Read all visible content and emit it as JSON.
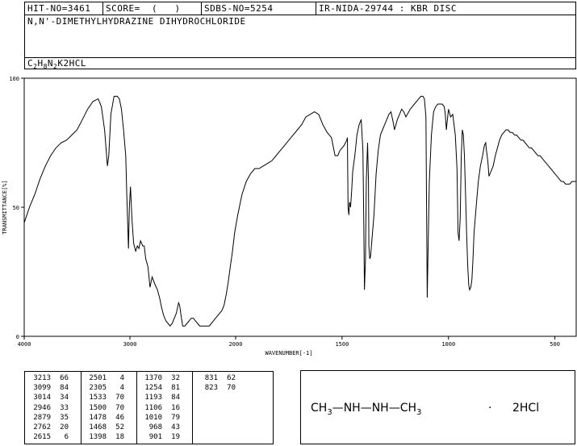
{
  "header": {
    "hit_no": "HIT-NO=3461",
    "score": "SCORE=  (   )",
    "sdbs_no": "SDBS-NO=5254",
    "ir_method": "IR-NIDA-29744 : KBR DISC",
    "compound_name": "N,N'-DIMETHYLHYDRAZINE DIHYDROCHLORIDE",
    "formula": {
      "c": "C",
      "c_n": "2",
      "h": "H",
      "h_n": "8",
      "n": "N",
      "n_n": "2",
      "suffix": "K2HCL"
    }
  },
  "structure": {
    "ch3_left": "CH",
    "sub3a": "3",
    "dash1": "—",
    "nh1": "NH",
    "dash2": "—",
    "nh2": "NH",
    "dash3": "—",
    "ch3_right": "CH",
    "sub3b": "3",
    "dot": "·",
    "salt": "2HCl"
  },
  "chart_data": {
    "type": "line",
    "xlabel": "WAVENUMBER[-1]",
    "ylabel": "TRANSMITTANCE[%]",
    "xlim": [
      4000,
      400
    ],
    "ylim": [
      0,
      100
    ],
    "xticks": [
      "4000",
      "3000",
      "2000",
      "1500",
      "1000",
      "500"
    ],
    "yticks": [
      "100",
      "50",
      "0"
    ],
    "series": [
      {
        "x": [
          4000,
          3950,
          3900,
          3850,
          3800,
          3750,
          3700,
          3650,
          3600,
          3550,
          3500,
          3450,
          3400,
          3350,
          3300,
          3270,
          3240,
          3213,
          3200,
          3180,
          3150,
          3120,
          3100,
          3080,
          3060,
          3040,
          3030,
          3014,
          3005,
          2995,
          2980,
          2965,
          2946,
          2930,
          2915,
          2900,
          2879,
          2865,
          2850,
          2830,
          2810,
          2790,
          2762,
          2740,
          2720,
          2700,
          2680,
          2660,
          2640,
          2620,
          2600,
          2580,
          2560,
          2550,
          2540,
          2530,
          2520,
          2501,
          2480,
          2460,
          2440,
          2420,
          2400,
          2380,
          2360,
          2340,
          2320,
          2305,
          2290,
          2270,
          2250,
          2230,
          2210,
          2190,
          2170,
          2150,
          2130,
          2110,
          2090,
          2070,
          2050,
          2030,
          2010,
          1990,
          1970,
          1950,
          1930,
          1910,
          1890,
          1870,
          1850,
          1830,
          1810,
          1790,
          1770,
          1750,
          1730,
          1710,
          1690,
          1670,
          1650,
          1630,
          1610,
          1600,
          1590,
          1570,
          1550,
          1533,
          1520,
          1510,
          1500,
          1490,
          1478,
          1475,
          1472,
          1468,
          1465,
          1460,
          1455,
          1450,
          1440,
          1430,
          1420,
          1410,
          1402,
          1398,
          1395,
          1390,
          1386,
          1380,
          1376,
          1374,
          1370,
          1366,
          1360,
          1350,
          1340,
          1330,
          1320,
          1310,
          1300,
          1290,
          1280,
          1270,
          1260,
          1254,
          1240,
          1230,
          1220,
          1210,
          1200,
          1193,
          1180,
          1170,
          1160,
          1150,
          1140,
          1130,
          1120,
          1113,
          1106,
          1100,
          1090,
          1080,
          1070,
          1060,
          1050,
          1040,
          1030,
          1020,
          1015,
          1010,
          1005,
          1000,
          990,
          980,
          968,
          960,
          955,
          950,
          945,
          940,
          935,
          930,
          925,
          920,
          915,
          910,
          905,
          901,
          895,
          890,
          885,
          880,
          870,
          860,
          850,
          840,
          831,
          825,
          823,
          815,
          810,
          800,
          790,
          780,
          770,
          760,
          750,
          740,
          730,
          720,
          710,
          700,
          690,
          680,
          670,
          660,
          650,
          640,
          630,
          620,
          610,
          600,
          590,
          580,
          570,
          560,
          550,
          540,
          530,
          520,
          510,
          500,
          490,
          480,
          470,
          460,
          450,
          440,
          430,
          420,
          410,
          400
        ],
        "y": [
          44,
          50,
          55,
          61,
          66,
          70,
          73,
          75,
          76,
          78,
          80,
          84,
          88,
          91,
          92,
          89,
          80,
          66,
          70,
          86,
          93,
          93,
          92,
          88,
          80,
          70,
          55,
          34,
          50,
          58,
          45,
          36,
          33,
          35,
          34,
          37,
          35,
          35,
          30,
          27,
          19,
          23,
          20,
          18,
          15,
          11,
          8,
          6,
          5,
          4,
          5,
          7,
          9,
          11,
          13,
          12,
          9,
          4,
          4,
          5,
          6,
          7,
          7,
          6,
          5,
          4,
          4,
          4,
          4,
          4,
          4,
          5,
          6,
          7,
          8,
          9,
          10,
          12,
          16,
          21,
          27,
          33,
          40,
          47,
          55,
          60,
          63,
          65,
          65,
          66,
          67,
          68,
          70,
          72,
          74,
          76,
          78,
          80,
          82,
          85,
          86,
          87,
          86,
          84,
          82,
          79,
          77,
          70,
          70,
          72,
          73,
          74,
          76,
          77,
          50,
          47,
          52,
          50,
          56,
          64,
          70,
          78,
          82,
          84,
          72,
          44,
          18,
          30,
          60,
          75,
          60,
          35,
          30,
          31,
          37,
          47,
          63,
          72,
          78,
          80,
          82,
          84,
          86,
          87,
          83,
          80,
          84,
          86,
          88,
          87,
          85,
          86,
          88,
          89,
          90,
          91,
          92,
          93,
          93,
          92,
          85,
          15,
          60,
          78,
          87,
          89,
          90,
          90,
          90,
          89,
          86,
          80,
          84,
          88,
          85,
          86,
          78,
          65,
          40,
          37,
          46,
          70,
          80,
          78,
          70,
          55,
          40,
          28,
          20,
          18,
          19,
          22,
          30,
          40,
          50,
          60,
          66,
          70,
          74,
          75,
          73,
          68,
          62,
          64,
          66,
          70,
          73,
          76,
          78,
          79,
          80,
          80,
          79,
          79,
          78,
          78,
          77,
          76,
          76,
          75,
          74,
          73,
          73,
          72,
          71,
          70,
          70,
          69,
          68,
          67,
          66,
          65,
          64,
          63,
          62,
          61,
          60,
          60,
          59,
          59,
          59,
          60,
          60,
          60
        ]
      }
    ],
    "peaks": {
      "columns": [
        [
          [
            "3213",
            "66"
          ],
          [
            "3099",
            "84"
          ],
          [
            "3014",
            "34"
          ],
          [
            "2946",
            "33"
          ],
          [
            "2879",
            "35"
          ],
          [
            "2762",
            "20"
          ],
          [
            "2615",
            "6"
          ]
        ],
        [
          [
            "2501",
            "4"
          ],
          [
            "2305",
            "4"
          ],
          [
            "1533",
            "70"
          ],
          [
            "1500",
            "70"
          ],
          [
            "1478",
            "46"
          ],
          [
            "1468",
            "52"
          ],
          [
            "1398",
            "18"
          ]
        ],
        [
          [
            "1370",
            "32"
          ],
          [
            "1254",
            "81"
          ],
          [
            "1193",
            "84"
          ],
          [
            "1106",
            "16"
          ],
          [
            "1010",
            "79"
          ],
          [
            "968",
            "43"
          ],
          [
            "901",
            "19"
          ]
        ],
        [
          [
            "831",
            "62"
          ],
          [
            "823",
            "70"
          ]
        ]
      ]
    }
  }
}
